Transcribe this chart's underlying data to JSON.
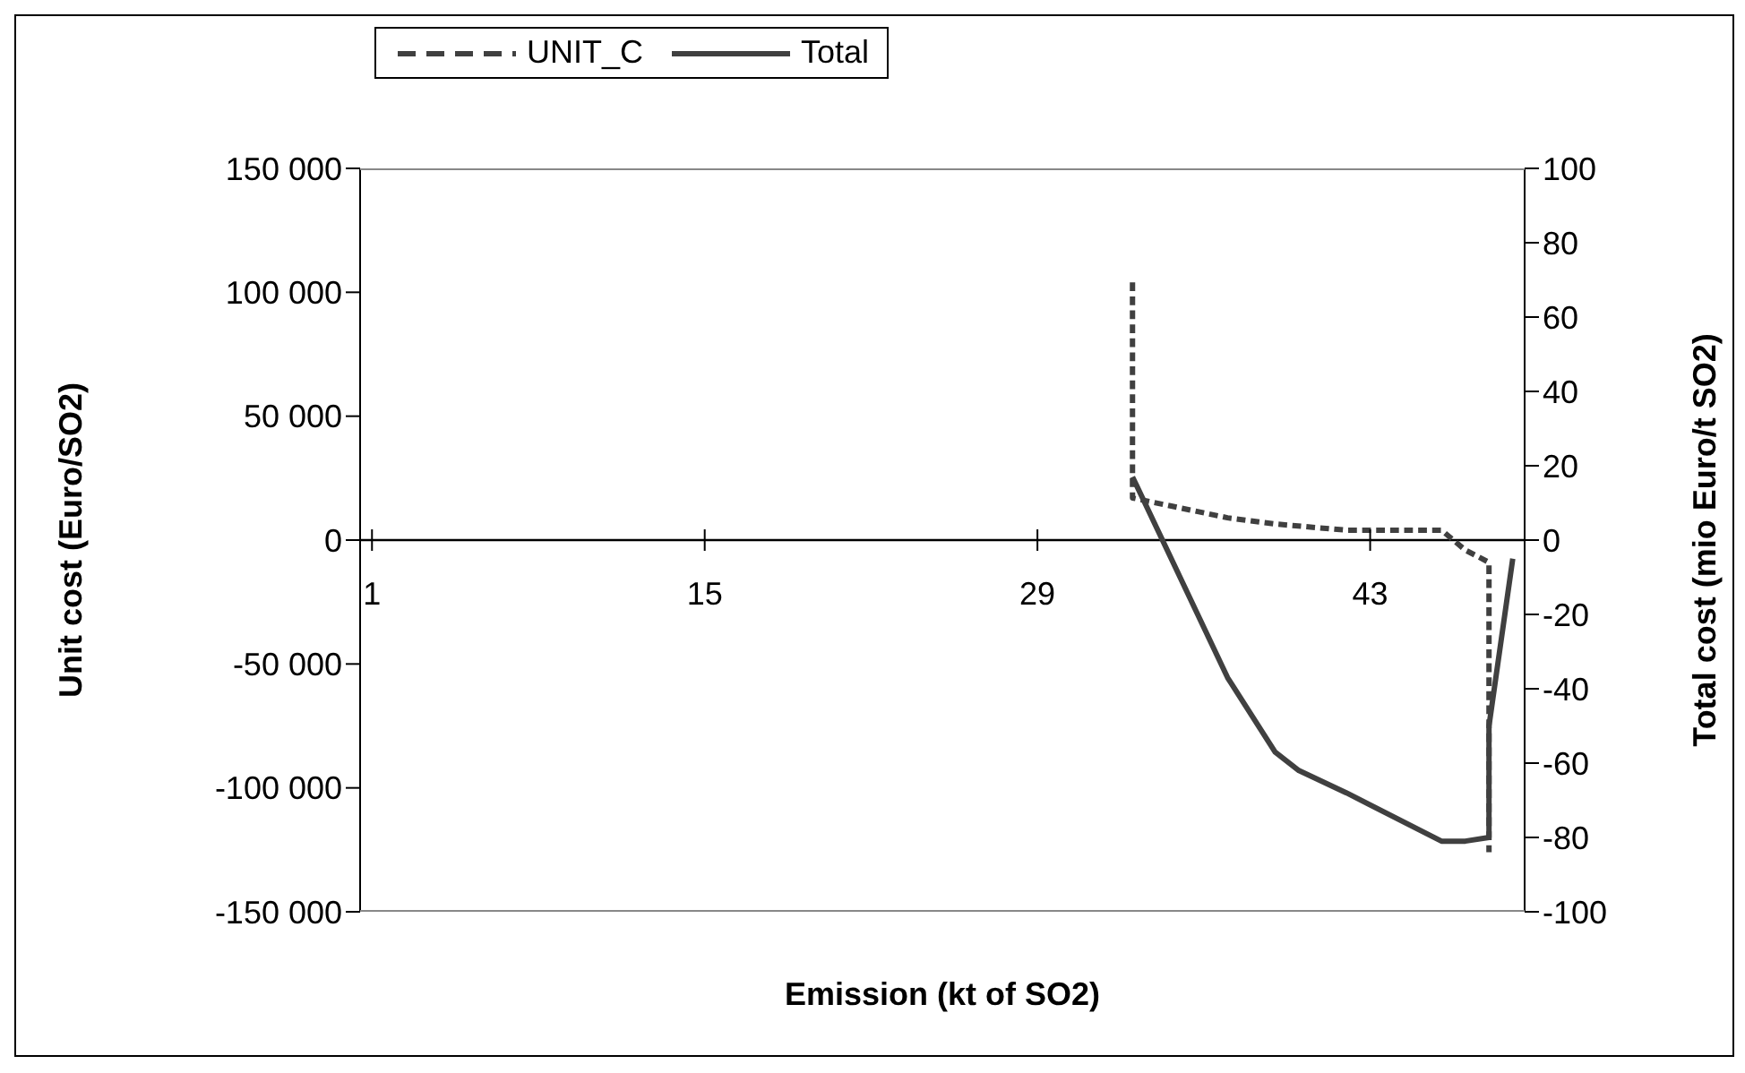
{
  "chart_data": {
    "type": "line",
    "xlabel": "Emission (kt of SO2)",
    "ylabel": "Unit cost (Euro/SO2)",
    "y2label": "Total cost (mio Euro/t SO2)",
    "xlim": [
      0.5,
      49.5
    ],
    "xticks": [
      1,
      15,
      29,
      43
    ],
    "ylim": [
      -150000,
      150000
    ],
    "yticks": [
      {
        "value": -150000,
        "label": "-150 000"
      },
      {
        "value": -100000,
        "label": "-100 000"
      },
      {
        "value": -50000,
        "label": "-50 000"
      },
      0,
      {
        "value": 50000,
        "label": "50 000"
      },
      {
        "value": 100000,
        "label": "100 000"
      },
      {
        "value": 150000,
        "label": "150 000"
      }
    ],
    "y2lim": [
      -100,
      100
    ],
    "y2ticks": [
      -100,
      -80,
      -60,
      -40,
      -20,
      0,
      20,
      40,
      60,
      80,
      100
    ],
    "legend": "top",
    "grid": false,
    "marker": "none",
    "series": [
      {
        "name": "UNIT_C",
        "color": "#404040",
        "line_style": "dashed",
        "x": [
          33,
          33,
          35,
          37,
          39,
          42,
          46,
          47,
          48,
          48
        ],
        "values": [
          104000,
          17000,
          13000,
          9000,
          6500,
          4000,
          4000,
          -4000,
          -9000,
          -126000
        ]
      },
      {
        "name": "Total",
        "color": "#404040",
        "line_style": "solid",
        "axis": "y2",
        "x": [
          33,
          37,
          39,
          40,
          42,
          46,
          47,
          48,
          48,
          49
        ],
        "values": [
          17,
          -37,
          -57,
          -62,
          -68,
          -81,
          -81,
          -80,
          -50,
          -5
        ]
      }
    ]
  }
}
